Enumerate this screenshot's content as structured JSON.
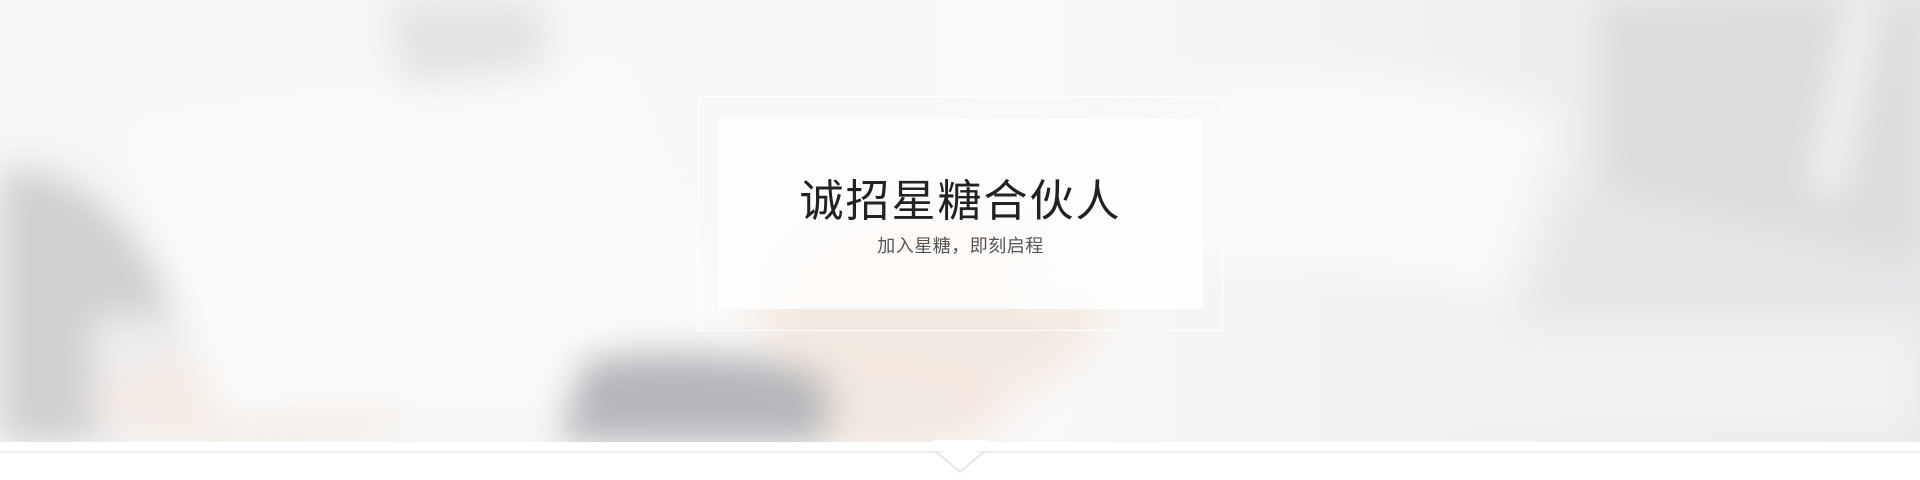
{
  "banner": {
    "title": "诚招星糖合伙人",
    "subtitle": "加入星糖，即刻启程"
  },
  "colors": {
    "overlay": "#ffffff",
    "title": "#222222",
    "subtitle": "#555555",
    "divider": "#eeeeee"
  },
  "icons": {
    "notch": "chevron-down-icon"
  }
}
